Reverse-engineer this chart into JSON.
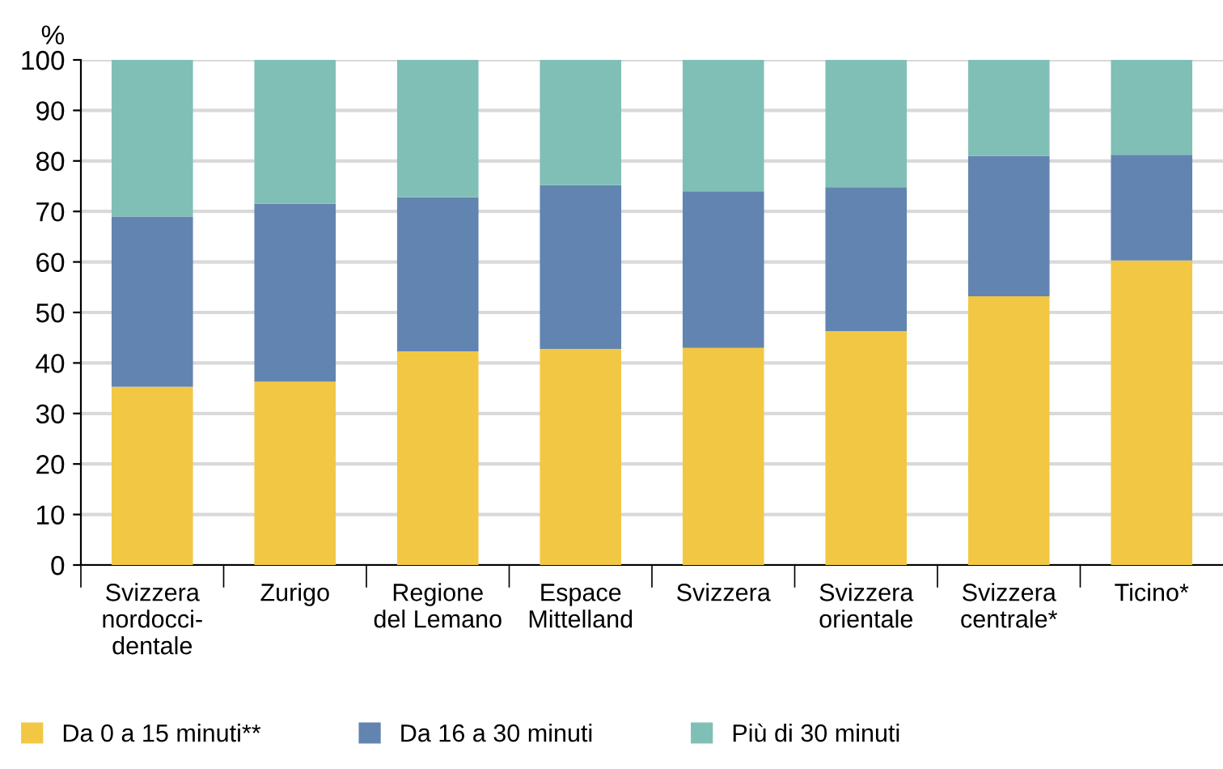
{
  "chart_data": {
    "type": "bar",
    "stacked": true,
    "ylabel": "%",
    "categories": [
      "Svizzera\nnordocci-\ndentale",
      "Zurigo",
      "Regione\ndel Lemano",
      "Espace\nMittelland",
      "Svizzera",
      "Svizzera\norientale",
      "Svizzera\ncentrale*",
      "Ticino*"
    ],
    "series": [
      {
        "name": "Da 0 a 15 minuti**",
        "color": "#f2c744",
        "values": [
          35.3,
          36.3,
          42.3,
          42.8,
          43,
          46.3,
          53.2,
          60.3
        ]
      },
      {
        "name": "Da 16 a 30 minuti",
        "color": "#6284b0",
        "values": [
          33.7,
          35.2,
          30.5,
          32.4,
          31,
          28.5,
          27.8,
          20.9
        ]
      },
      {
        "name": "Più di 30 minuti",
        "color": "#80bfb6",
        "values": [
          31,
          28.5,
          27.2,
          24.8,
          26,
          25.2,
          19,
          18.8
        ]
      }
    ],
    "ylim": [
      0,
      100
    ],
    "yticks": [
      0,
      10,
      20,
      30,
      40,
      50,
      60,
      70,
      80,
      90,
      100
    ],
    "grid": "y",
    "legend": "bottom"
  }
}
